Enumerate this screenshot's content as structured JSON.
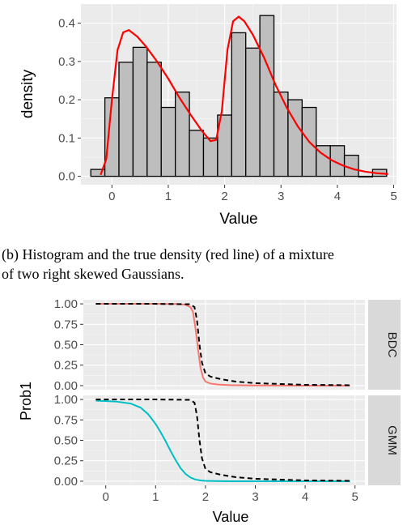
{
  "chart_data": [
    {
      "type": "bar",
      "ylabel": "density",
      "xlabel": "Value",
      "xlim": [
        -0.55,
        5.05
      ],
      "ylim": [
        -0.022,
        0.45
      ],
      "x_ticks": [
        0,
        1,
        2,
        3,
        4,
        5
      ],
      "x_tick_labels": [
        "0",
        "1",
        "2",
        "3",
        "4",
        "5"
      ],
      "y_ticks": [
        0,
        0.1,
        0.2,
        0.3,
        0.4
      ],
      "y_tick_labels": [
        "0.0",
        "0.1",
        "0.2",
        "0.3",
        "0.4"
      ],
      "bin_width": 0.25,
      "bin_centers": [
        -0.25,
        0,
        0.25,
        0.5,
        0.75,
        1,
        1.25,
        1.5,
        1.75,
        2,
        2.25,
        2.5,
        2.75,
        3,
        3.25,
        3.5,
        3.75,
        4,
        4.25,
        4.5,
        4.75
      ],
      "bin_heights": [
        0.018,
        0.205,
        0.298,
        0.337,
        0.298,
        0.18,
        0.22,
        0.12,
        0.1,
        0.16,
        0.375,
        0.335,
        0.42,
        0.22,
        0.2,
        0.18,
        0.08,
        0.08,
        0.055,
        0.0,
        0.018
      ],
      "density_curve": {
        "color": "#ff0000",
        "x": [
          -0.2,
          -0.1,
          0,
          0.1,
          0.2,
          0.3,
          0.45,
          0.6,
          0.8,
          1.0,
          1.2,
          1.4,
          1.6,
          1.75,
          1.85,
          1.95,
          2.05,
          2.15,
          2.25,
          2.35,
          2.5,
          2.7,
          2.9,
          3.1,
          3.3,
          3.5,
          3.7,
          3.9,
          4.1,
          4.3,
          4.5,
          4.7,
          4.9
        ],
        "y": [
          0.004,
          0.045,
          0.2,
          0.33,
          0.376,
          0.382,
          0.365,
          0.34,
          0.3,
          0.255,
          0.205,
          0.16,
          0.118,
          0.092,
          0.095,
          0.17,
          0.33,
          0.405,
          0.417,
          0.405,
          0.37,
          0.31,
          0.24,
          0.18,
          0.13,
          0.09,
          0.062,
          0.042,
          0.028,
          0.018,
          0.012,
          0.008,
          0.006
        ]
      }
    },
    {
      "type": "line",
      "ylabel": "Prob1",
      "xlabel": "Value",
      "xlim": [
        -0.45,
        5.2
      ],
      "ylim": [
        -0.05,
        1.05
      ],
      "x_ticks": [
        0,
        1,
        2,
        3,
        4,
        5
      ],
      "x_tick_labels": [
        "0",
        "1",
        "2",
        "3",
        "4",
        "5"
      ],
      "y_ticks": [
        0,
        0.25,
        0.5,
        0.75,
        1.0
      ],
      "y_tick_labels": [
        "0.00",
        "0.25",
        "0.50",
        "0.75",
        "1.00"
      ],
      "panels": [
        {
          "strip": "BDC",
          "series": [
            {
              "style": "solid",
              "color": "#f8766d",
              "x": [
                -0.2,
                0.5,
                1.0,
                1.4,
                1.6,
                1.7,
                1.75,
                1.8,
                1.85,
                1.9,
                1.95,
                2.0,
                2.1,
                2.25,
                2.5,
                3.0,
                4.0,
                4.9
              ],
              "y": [
                1.0,
                1.0,
                1.0,
                0.998,
                0.99,
                0.96,
                0.9,
                0.7,
                0.45,
                0.22,
                0.1,
                0.05,
                0.025,
                0.013,
                0.006,
                0.002,
                0.0,
                0.0
              ]
            },
            {
              "style": "dashed",
              "color": "#000000",
              "x": [
                -0.2,
                1.0,
                1.7,
                1.78,
                1.83,
                1.88,
                1.93,
                2.0,
                2.1,
                2.3,
                2.6,
                3.0,
                3.5,
                4.0,
                4.9
              ],
              "y": [
                1.0,
                1.0,
                0.995,
                0.96,
                0.8,
                0.5,
                0.28,
                0.15,
                0.11,
                0.08,
                0.05,
                0.03,
                0.02,
                0.01,
                0.005
              ]
            }
          ]
        },
        {
          "strip": "GMM",
          "series": [
            {
              "style": "solid",
              "color": "#00bfc4",
              "x": [
                -0.2,
                0.2,
                0.5,
                0.7,
                0.85,
                1.0,
                1.1,
                1.2,
                1.3,
                1.4,
                1.5,
                1.6,
                1.7,
                1.8,
                1.9,
                2.0,
                2.2,
                2.5,
                3.0,
                4.0,
                4.9
              ],
              "y": [
                0.985,
                0.975,
                0.95,
                0.9,
                0.82,
                0.7,
                0.6,
                0.49,
                0.37,
                0.26,
                0.16,
                0.09,
                0.045,
                0.02,
                0.01,
                0.005,
                0.002,
                0.0,
                0.0,
                0.0,
                0.0
              ]
            },
            {
              "style": "dashed",
              "color": "#000000",
              "x": [
                -0.2,
                1.0,
                1.7,
                1.78,
                1.83,
                1.88,
                1.93,
                2.0,
                2.1,
                2.3,
                2.6,
                3.0,
                3.5,
                4.0,
                4.9
              ],
              "y": [
                1.0,
                1.0,
                0.995,
                0.96,
                0.8,
                0.5,
                0.28,
                0.15,
                0.11,
                0.08,
                0.05,
                0.03,
                0.02,
                0.01,
                0.005
              ]
            }
          ]
        }
      ]
    }
  ],
  "caption": {
    "line1": "(b) Histogram and the true density (red line) of a mixture",
    "line2": "of two right skewed Gaussians."
  }
}
